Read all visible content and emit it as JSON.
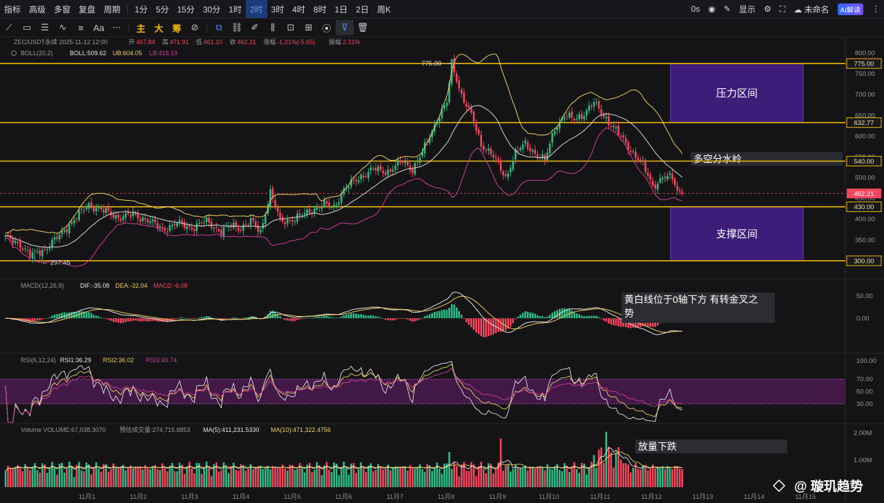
{
  "toolbar": {
    "items": [
      "指标",
      "高级",
      "多窗",
      "复盘",
      "周期",
      "1分",
      "5分",
      "15分",
      "30分",
      "1时",
      "2时",
      "3时",
      "4时",
      "8时",
      "1日",
      "2日",
      "周K"
    ],
    "active": "2时",
    "right": {
      "timer": "0s",
      "display": "显示",
      "account": "未命名",
      "ai": "AI解读"
    }
  },
  "drawing_tools": {
    "zhu": "主",
    "da": "大",
    "chou": "筹",
    "text": "Aa"
  },
  "header": {
    "symbol": "ZEC/USDT永续",
    "datetime": "2025-11-12 12:00",
    "open_label": "开",
    "open": "467.84",
    "high_label": "高",
    "high": "471.91",
    "low_label": "低",
    "low": "461.10",
    "close_label": "收",
    "close": "462.21",
    "chg_label": "涨幅",
    "chg": "-1.21%(-5.65)",
    "amp_label": "振幅",
    "amp": "2.31%",
    "boll_name": "BOLL(20,2)",
    "boll": "BOLL:509.62",
    "ub": "UB:604.05",
    "lb": "LB:415.19",
    "macd_name": "MACD(12,26,9)",
    "dif": "DIF:-35.08",
    "dea": "DEA:-32.04",
    "macd": "MACD:-6.08",
    "rsi_name": "RSI(6,12,24)",
    "rsi1": "RSI1:36.29",
    "rsi2": "RSI2:36.02",
    "rsi3": "RSI3:40.74",
    "vol_name": "Volume",
    "vol": "VOLUME:67,038.3070",
    "est": "预估成交量:274,715.8853",
    "ma5": "MA(5):411,231.5330",
    "ma10": "MA(10):471,322.4756"
  },
  "annotations": {
    "resistance": "压力区间",
    "pivot": "多空分水岭",
    "support": "支撑区间",
    "macd_note_1": "黄白线位于0轴下方 有转金叉之",
    "macd_note_2": "势",
    "volume_note": "放量下跌",
    "high_mark": "775.00",
    "low_mark": "297.45",
    "watermark": "@ 璇玑趋势"
  },
  "colors": {
    "up": "#2ebd85",
    "down": "#f6465d",
    "level": "#f0b90b",
    "zone": "#3d1c7a",
    "boll_ub": "#f0d060",
    "boll_mid": "#d9d9d9",
    "boll_lb": "#d63f9e"
  },
  "chart_data": [
    {
      "type": "candlestick",
      "title": "ZEC/USDT永续 2时",
      "x": [
        "11月1",
        "11月2",
        "11月3",
        "11月4",
        "11月5",
        "11月6",
        "11月7",
        "11月8",
        "11月9",
        "11月10",
        "11月11",
        "11月12",
        "11月13",
        "11月14",
        "11月15"
      ],
      "y_ticks": [
        800,
        750,
        700,
        650,
        600,
        550,
        500,
        450,
        400,
        350,
        300
      ],
      "ylim": [
        260,
        815
      ],
      "horizontal_levels": [
        775,
        632.77,
        540,
        430,
        300
      ],
      "level_labels": [
        "775.00",
        "632.77",
        "540.00",
        "430.00",
        "300.00"
      ],
      "current_price": 462.21,
      "current_label": "462.21",
      "zones": [
        {
          "label": "压力区间",
          "from": 632.77,
          "to": 775
        },
        {
          "label": "支撑区间",
          "from": 300,
          "to": 430
        }
      ],
      "close_path": [
        [
          0,
          355
        ],
        [
          6,
          340
        ],
        [
          10,
          312
        ],
        [
          16,
          328
        ],
        [
          22,
          360
        ],
        [
          28,
          400
        ],
        [
          34,
          435
        ],
        [
          40,
          420
        ],
        [
          46,
          405
        ],
        [
          52,
          410
        ],
        [
          58,
          398
        ],
        [
          64,
          375
        ],
        [
          70,
          390
        ],
        [
          76,
          380
        ],
        [
          82,
          395
        ],
        [
          88,
          370
        ],
        [
          92,
          385
        ],
        [
          96,
          380
        ],
        [
          100,
          395
        ],
        [
          104,
          370
        ],
        [
          108,
          465
        ],
        [
          112,
          395
        ],
        [
          118,
          400
        ],
        [
          124,
          420
        ],
        [
          130,
          435
        ],
        [
          134,
          430
        ],
        [
          138,
          470
        ],
        [
          144,
          500
        ],
        [
          150,
          520
        ],
        [
          156,
          515
        ],
        [
          162,
          540
        ],
        [
          166,
          520
        ],
        [
          170,
          560
        ],
        [
          176,
          640
        ],
        [
          180,
          680
        ],
        [
          182,
          775
        ],
        [
          186,
          700
        ],
        [
          190,
          650
        ],
        [
          194,
          580
        ],
        [
          198,
          560
        ],
        [
          202,
          520
        ],
        [
          204,
          500
        ],
        [
          208,
          560
        ],
        [
          212,
          580
        ],
        [
          216,
          560
        ],
        [
          220,
          540
        ],
        [
          224,
          620
        ],
        [
          228,
          650
        ],
        [
          232,
          640
        ],
        [
          236,
          655
        ],
        [
          240,
          680
        ],
        [
          244,
          650
        ],
        [
          248,
          620
        ],
        [
          252,
          590
        ],
        [
          256,
          560
        ],
        [
          260,
          530
        ],
        [
          264,
          480
        ],
        [
          268,
          500
        ],
        [
          272,
          500
        ],
        [
          274,
          470
        ],
        [
          276,
          462.21
        ]
      ]
    },
    {
      "type": "line",
      "title": "MACD(12,26,9)",
      "y_ticks": [
        50,
        0
      ],
      "ylim": [
        -75,
        85
      ]
    },
    {
      "type": "line",
      "title": "RSI(6,12,24)",
      "y_ticks": [
        100,
        70,
        50,
        30
      ],
      "ylim": [
        0,
        110
      ],
      "band": [
        30,
        70
      ]
    },
    {
      "type": "bar",
      "title": "Volume",
      "y_ticks": [
        "2.00M",
        "1.00M"
      ],
      "ylim": [
        0,
        2.3
      ]
    }
  ]
}
